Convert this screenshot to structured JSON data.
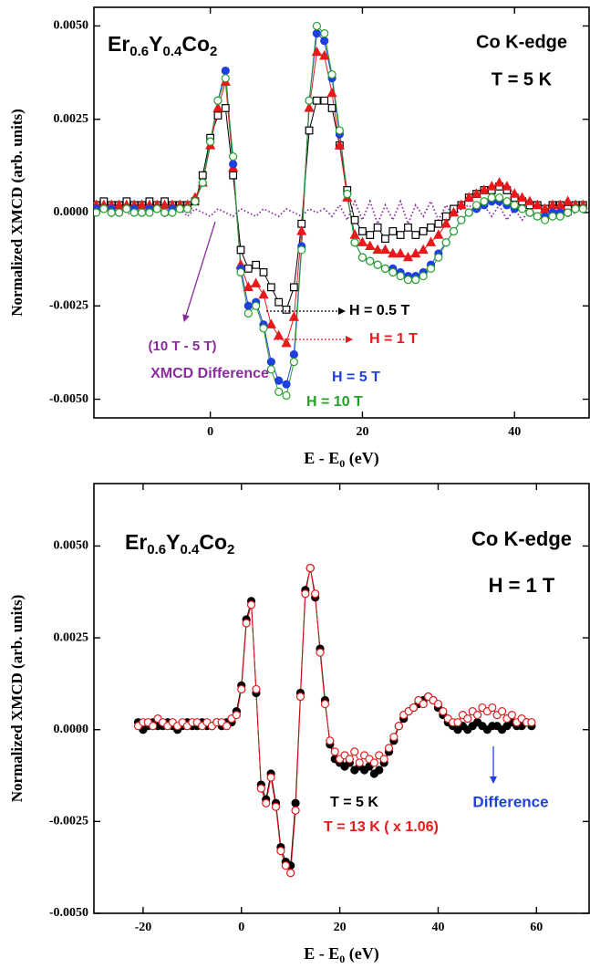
{
  "chart_data": [
    {
      "type": "scatter",
      "title": [
        "Er",
        "0.6",
        "Y",
        "0.4",
        "Co",
        "2"
      ],
      "y_label": "Normalized XMCD (arb. units)",
      "x_label": [
        "E - E",
        "0",
        " (eV)"
      ],
      "annotations": [
        "Co K-edge",
        "T = 5 K",
        "(10 T - 5 T)"
      ],
      "xlim": [
        -15.3,
        49.8
      ],
      "ylim": [
        -0.0055,
        0.0055
      ],
      "xticks": [
        0,
        20,
        40
      ],
      "yticks": [
        {
          "value": 0.005,
          "label": "0.0050"
        },
        {
          "value": 0.0025,
          "label": "0.0025"
        },
        {
          "value": 0,
          "label": "0.0000"
        },
        {
          "value": -0.0025,
          "label": "-0.0025"
        },
        {
          "value": -0.005,
          "label": "-0.0050"
        }
      ],
      "x": [
        -15,
        -14,
        -13,
        -12,
        -11,
        -10,
        -9,
        -8,
        -7,
        -6,
        -5,
        -4,
        -3,
        -2,
        -1,
        0,
        1,
        2,
        3,
        4,
        5,
        6,
        7,
        8,
        9,
        10,
        11,
        12,
        13,
        14,
        15,
        16,
        17,
        18,
        19,
        20,
        21,
        22,
        23,
        24,
        25,
        26,
        27,
        28,
        29,
        30,
        31,
        32,
        33,
        34,
        35,
        36,
        37,
        38,
        39,
        40,
        41,
        42,
        43,
        44,
        45,
        46,
        47,
        48,
        49
      ],
      "series": [
        {
          "name": "XMCD Difference",
          "color": "#8a2b9e",
          "marker": "none",
          "line": "dotted",
          "values": [
            0,
            0.0001,
            -0.0001,
            0.0001,
            0,
            -0.0001,
            0.0001,
            0,
            0.0001,
            -0.0001,
            0,
            0.0001,
            -0.0001,
            0.0001,
            0,
            -0.0001,
            0.0001,
            0,
            -0.0001,
            0.0001,
            0,
            -0.0001,
            0.0001,
            0,
            -0.0001,
            0.0001,
            0,
            -0.0001,
            0.0001,
            0,
            0.0001,
            -0.0001,
            0.0002,
            -0.0002,
            0.0003,
            -0.0002,
            0.0003,
            -0.0003,
            0.0002,
            -0.0002,
            0.0003,
            -0.0003,
            0.0002,
            -0.0001,
            0.0003,
            -0.0002,
            0.0002,
            -0.0001,
            0.0001,
            0.0002,
            0,
            0.0002,
            -0.0001,
            0.0002,
            -0.0002,
            0.0001,
            -0.0002,
            0.0001,
            -0.0001,
            0.0001,
            0,
            0.0001,
            -0.0001,
            0,
            0.0001
          ]
        },
        {
          "name": "H = 0.5 T",
          "color": "#000000",
          "marker": "square-open",
          "line": "solid",
          "values": [
            0.0002,
            0.0003,
            0.0002,
            0.0002,
            0.0003,
            0.0002,
            0.0002,
            0.0003,
            0.0002,
            0.0003,
            0.0002,
            0.0002,
            0.0002,
            0.0003,
            0.001,
            0.002,
            0.0026,
            0.0028,
            0.001,
            -0.001,
            -0.0015,
            -0.0014,
            -0.0016,
            -0.002,
            -0.0024,
            -0.0026,
            -0.002,
            -0.0003,
            0.0022,
            0.003,
            0.003,
            0.0028,
            0.0018,
            0.0006,
            -0.0002,
            -0.0005,
            -0.0006,
            -0.0004,
            -0.0007,
            -0.0005,
            -0.0006,
            -0.0004,
            -0.0006,
            -0.0005,
            -0.0004,
            -0.0003,
            -0.0001,
            0.0001,
            0.0002,
            0.0004,
            0.0005,
            0.0006,
            0.0006,
            0.0007,
            0.0006,
            0.0004,
            0.0003,
            0.0002,
            0.0002,
            0.0001,
            0.0002,
            0.0002,
            0.0001,
            0.0002,
            0.0002
          ]
        },
        {
          "name": "H = 1 T",
          "color": "#e8191b",
          "marker": "triangle",
          "line": "solid",
          "values": [
            0.0002,
            0.0002,
            0.0002,
            0.0002,
            0.0002,
            0.0002,
            0.0002,
            0.0002,
            0.0002,
            0.0002,
            0.0002,
            0.0002,
            0.0002,
            0.0004,
            0.0008,
            0.0018,
            0.0028,
            0.0035,
            0.0012,
            -0.0014,
            -0.002,
            -0.0019,
            -0.0022,
            -0.003,
            -0.0033,
            -0.0035,
            -0.0028,
            -0.0005,
            0.0028,
            0.0043,
            0.0042,
            0.0032,
            0.0018,
            0.0004,
            -0.0006,
            -0.0008,
            -0.0009,
            -0.001,
            -0.001,
            -0.0011,
            -0.0011,
            -0.0012,
            -0.0011,
            -0.001,
            -0.0008,
            -0.0006,
            -0.0003,
            0,
            0.0002,
            0.0004,
            0.0005,
            0.0006,
            0.0007,
            0.0008,
            0.0007,
            0.0005,
            0.0004,
            0.0003,
            0.0002,
            0.0001,
            0.0002,
            0.0002,
            0.0003,
            0.0002,
            0.0002
          ]
        },
        {
          "name": "H = 5 T",
          "color": "#1f3fe0",
          "marker": "circle",
          "line": "solid",
          "values": [
            0.0001,
            0.0001,
            0.0001,
            0,
            0.0001,
            0.0001,
            0,
            0.0001,
            0.0001,
            0,
            0.0001,
            0.0001,
            0.0001,
            0.0003,
            0.0008,
            0.0019,
            0.003,
            0.0038,
            0.0013,
            -0.0015,
            -0.0025,
            -0.0024,
            -0.003,
            -0.004,
            -0.0045,
            -0.0046,
            -0.0038,
            -0.0009,
            0.003,
            0.0048,
            0.0046,
            0.0036,
            0.0021,
            0.0005,
            -0.0008,
            -0.0012,
            -0.0013,
            -0.0014,
            -0.0015,
            -0.0015,
            -0.0016,
            -0.0017,
            -0.0017,
            -0.0016,
            -0.0014,
            -0.0011,
            -0.0008,
            -0.0005,
            -0.0002,
            0,
            0.0001,
            0.0002,
            0.0003,
            0.0003,
            0.0002,
            0.0001,
            0.0001,
            0,
            -0.0001,
            -0.0001,
            0,
            0,
            0,
            0.0001,
            0.0001
          ]
        },
        {
          "name": "H = 10 T",
          "color": "#27a02a",
          "marker": "circle-open",
          "line": "solid",
          "values": [
            0,
            0.0001,
            0,
            0,
            0.0001,
            0,
            0,
            0,
            0.0001,
            0,
            0,
            0.0001,
            0.0001,
            0.0003,
            0.0008,
            0.0019,
            0.003,
            0.0036,
            0.0015,
            -0.0016,
            -0.0027,
            -0.0025,
            -0.0031,
            -0.0042,
            -0.0048,
            -0.0049,
            -0.004,
            -0.001,
            0.003,
            0.005,
            0.0048,
            0.0037,
            0.0022,
            0.0005,
            -0.0008,
            -0.0012,
            -0.0013,
            -0.0014,
            -0.0015,
            -0.0016,
            -0.0017,
            -0.0018,
            -0.0018,
            -0.0017,
            -0.0015,
            -0.0012,
            -0.0008,
            -0.0005,
            -0.0002,
            0,
            0.0002,
            0.0003,
            0.0004,
            0.0004,
            0.0003,
            0.0002,
            0.0001,
            0,
            -0.0001,
            -0.0002,
            -0.0001,
            -0.0001,
            0,
            0.0001,
            0.0001
          ]
        }
      ]
    },
    {
      "type": "scatter",
      "title": [
        "Er",
        "0.6",
        "Y",
        "0.4",
        "Co",
        "2"
      ],
      "y_label": "Normalized XMCD (arb. units)",
      "x_label": [
        "E - E",
        "0",
        " (eV)"
      ],
      "annotations": [
        "Co K-edge",
        "H = 1 T",
        "Difference"
      ],
      "xlim": [
        -30,
        70.7
      ],
      "ylim": [
        -0.005,
        0.0067
      ],
      "xticks": [
        -20,
        0,
        20,
        40,
        60
      ],
      "yticks": [
        {
          "value": 0.005,
          "label": "0.0050"
        },
        {
          "value": 0.0025,
          "label": "0.0025"
        },
        {
          "value": 0,
          "label": "0.0000"
        },
        {
          "value": -0.0025,
          "label": "-0.0025"
        },
        {
          "value": -0.005,
          "label": "-0.0050"
        }
      ],
      "x": [
        -21,
        -20,
        -19,
        -18,
        -17,
        -16,
        -15,
        -14,
        -13,
        -12,
        -11,
        -10,
        -9,
        -8,
        -7,
        -6,
        -5,
        -4,
        -3,
        -2,
        -1,
        0,
        1,
        2,
        3,
        4,
        5,
        6,
        7,
        8,
        9,
        10,
        11,
        12,
        13,
        14,
        15,
        16,
        17,
        18,
        19,
        20,
        21,
        22,
        23,
        24,
        25,
        26,
        27,
        28,
        29,
        30,
        31,
        32,
        33,
        34,
        35,
        36,
        37,
        38,
        39,
        40,
        41,
        42,
        43,
        44,
        45,
        46,
        47,
        48,
        49,
        50,
        51,
        52,
        53,
        54,
        55,
        56,
        57,
        58,
        59
      ],
      "series": [
        {
          "name": "T = 5 K",
          "color": "#000000",
          "marker": "circle",
          "line": "solid",
          "values": [
            0.0002,
            0,
            0.0001,
            0.0002,
            0.0001,
            0.0001,
            0.0002,
            0.0001,
            0,
            0.0001,
            0.0002,
            0.0001,
            0.0001,
            0.0002,
            0.0001,
            0.0001,
            0.0002,
            0.0001,
            0.0002,
            0.0002,
            0.0005,
            0.0012,
            0.003,
            0.0035,
            0.001,
            -0.0015,
            -0.0019,
            -0.0012,
            -0.002,
            -0.0032,
            -0.0036,
            -0.0037,
            -0.002,
            0.001,
            0.0038,
            0.0044,
            0.0036,
            0.0022,
            0.0008,
            -0.0004,
            -0.0008,
            -0.0009,
            -0.001,
            -0.0009,
            -0.0011,
            -0.001,
            -0.0011,
            -0.001,
            -0.0012,
            -0.0011,
            -0.0009,
            -0.0006,
            -0.0003,
            0.0001,
            0.0003,
            0.0005,
            0.0006,
            0.0007,
            0.0008,
            0.0009,
            0.0008,
            0.0006,
            0.0004,
            0.0002,
            0.0001,
            0,
            0.0001,
            0,
            0.0001,
            0.0002,
            0.0001,
            0,
            0.0001,
            0.0001,
            0,
            0.0001,
            0.0002,
            0.0001,
            0.0001,
            0.0002,
            0.0001
          ]
        },
        {
          "name": "T = 13 K ( x 1.06)",
          "color": "#e8191b",
          "marker": "circle-open",
          "line": "solid",
          "values": [
            0.0001,
            0.0002,
            0.0002,
            0.0001,
            0.0003,
            0.0002,
            0.0001,
            0.0002,
            0.0001,
            0.0002,
            0.0001,
            0.0002,
            0.0002,
            0.0001,
            0.0002,
            0.0001,
            0.0002,
            0.0002,
            0.0001,
            0.0003,
            0.0004,
            0.0011,
            0.0029,
            0.0034,
            0.0011,
            -0.0016,
            -0.002,
            -0.0013,
            -0.0021,
            -0.0033,
            -0.0037,
            -0.0039,
            -0.0022,
            0.0009,
            0.0037,
            0.0044,
            0.0037,
            0.0021,
            0.0007,
            -0.0003,
            -0.0006,
            -0.0008,
            -0.0007,
            -0.0008,
            -0.0006,
            -0.0009,
            -0.0007,
            -0.0008,
            -0.0009,
            -0.0007,
            -0.0008,
            -0.0005,
            -0.0002,
            0.0001,
            0.0004,
            0.0005,
            0.0006,
            0.0008,
            0.0007,
            0.0009,
            0.0008,
            0.0007,
            0.0005,
            0.0003,
            0.0002,
            0.0002,
            0.0004,
            0.0003,
            0.0005,
            0.0004,
            0.0006,
            0.0005,
            0.0006,
            0.0004,
            0.0005,
            0.0003,
            0.0004,
            0.0002,
            0.0003,
            0.0002,
            0.0002
          ]
        }
      ]
    }
  ]
}
